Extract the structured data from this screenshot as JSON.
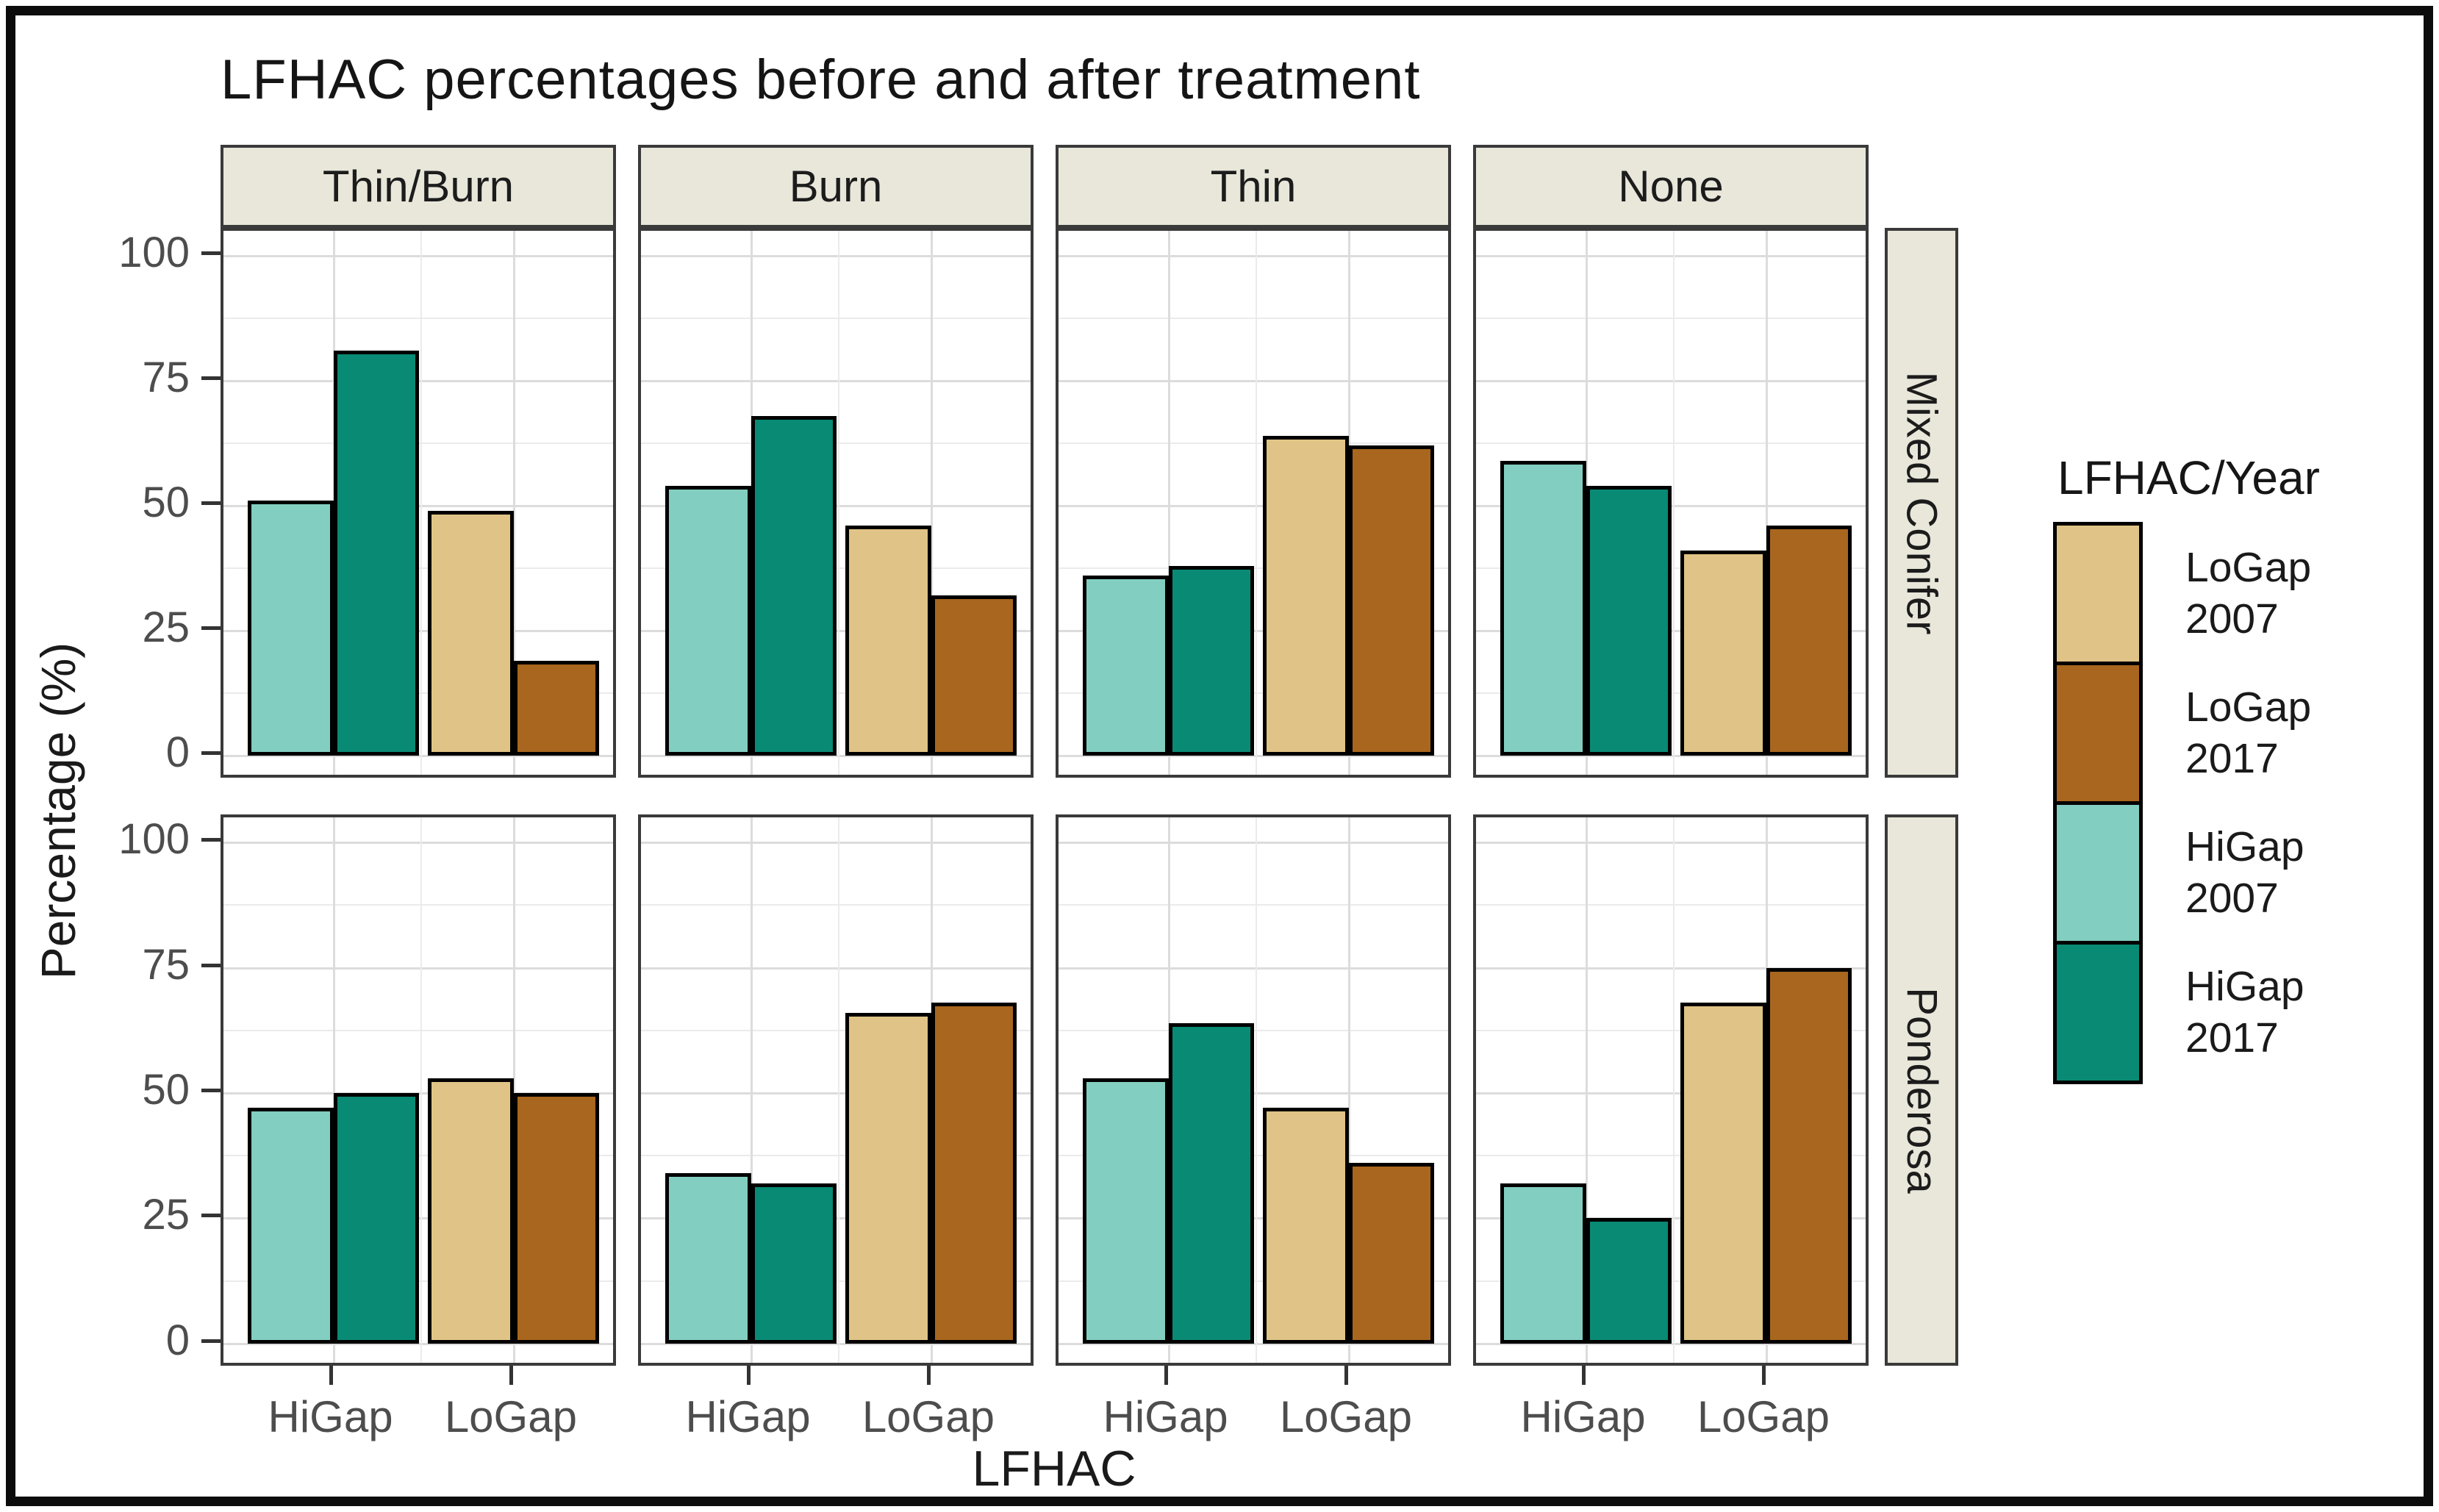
{
  "title": "LFHAC percentages before and after treatment",
  "axes": {
    "y_title": "Percentage (%)",
    "x_title": "LFHAC",
    "y_tick_labels": [
      "100",
      "75",
      "50",
      "25",
      "0"
    ],
    "x_tick_labels": [
      "HiGap",
      "LoGap"
    ]
  },
  "facets": {
    "col_labels": [
      "Thin/Burn",
      "Burn",
      "Thin",
      "None"
    ],
    "row_labels": [
      "Mixed Conifer",
      "Ponderosa"
    ]
  },
  "legend": {
    "title": "LFHAC/Year",
    "entries": [
      {
        "label": "LoGap 2007",
        "label_lines": [
          "LoGap",
          "2007"
        ],
        "color": "#e0c386"
      },
      {
        "label": "LoGap 2017",
        "label_lines": [
          "LoGap",
          "2017"
        ],
        "color": "#a8661e"
      },
      {
        "label": "HiGap 2007",
        "label_lines": [
          "HiGap",
          "2007"
        ],
        "color": "#82cec0"
      },
      {
        "label": "HiGap 2017",
        "label_lines": [
          "HiGap",
          "2017"
        ],
        "color": "#098a74"
      }
    ]
  },
  "colors": {
    "higap_2007": "#82cec0",
    "higap_2017": "#098a74",
    "logap_2007": "#e0c386",
    "logap_2017": "#a8661e",
    "strip_background": "#e8e7da",
    "panel_border": "#3a3a3a",
    "bar_border": "#000000",
    "grid_major": "#dcdcdc",
    "grid_minor": "#ebebeb",
    "axis_text": "#4d4d4d"
  },
  "chart_data": {
    "type": "bar",
    "title": "LFHAC percentages before and after treatment",
    "xlabel": "LFHAC",
    "ylabel": "Percentage (%)",
    "ylim": [
      0,
      100
    ],
    "y_major_ticks": [
      0,
      25,
      50,
      75,
      100
    ],
    "y_minor_gridlines": [
      12.5,
      37.5,
      62.5,
      87.5
    ],
    "x_categories": [
      "HiGap",
      "LoGap"
    ],
    "facet_cols": [
      "Thin/Burn",
      "Burn",
      "Thin",
      "None"
    ],
    "facet_rows": [
      "Mixed Conifer",
      "Ponderosa"
    ],
    "legend_position": "right",
    "grid": true,
    "series": [
      {
        "name": "HiGap 2007",
        "category": "HiGap",
        "year": "2007",
        "color": "#82cec0"
      },
      {
        "name": "HiGap 2017",
        "category": "HiGap",
        "year": "2017",
        "color": "#098a74"
      },
      {
        "name": "LoGap 2007",
        "category": "LoGap",
        "year": "2007",
        "color": "#e0c386"
      },
      {
        "name": "LoGap 2017",
        "category": "LoGap",
        "year": "2017",
        "color": "#a8661e"
      }
    ],
    "panels": [
      {
        "facet_row": "Mixed Conifer",
        "facet_col": "Thin/Burn",
        "values": {
          "HiGap 2007": 51,
          "HiGap 2017": 81,
          "LoGap 2007": 49,
          "LoGap 2017": 19
        }
      },
      {
        "facet_row": "Mixed Conifer",
        "facet_col": "Burn",
        "values": {
          "HiGap 2007": 54,
          "HiGap 2017": 68,
          "LoGap 2007": 46,
          "LoGap 2017": 32
        }
      },
      {
        "facet_row": "Mixed Conifer",
        "facet_col": "Thin",
        "values": {
          "HiGap 2007": 36,
          "HiGap 2017": 38,
          "LoGap 2007": 64,
          "LoGap 2017": 62
        }
      },
      {
        "facet_row": "Mixed Conifer",
        "facet_col": "None",
        "values": {
          "HiGap 2007": 59,
          "HiGap 2017": 54,
          "LoGap 2007": 41,
          "LoGap 2017": 46
        }
      },
      {
        "facet_row": "Ponderosa",
        "facet_col": "Thin/Burn",
        "values": {
          "HiGap 2007": 47,
          "HiGap 2017": 50,
          "LoGap 2007": 53,
          "LoGap 2017": 50
        }
      },
      {
        "facet_row": "Ponderosa",
        "facet_col": "Burn",
        "values": {
          "HiGap 2007": 34,
          "HiGap 2017": 32,
          "LoGap 2007": 66,
          "LoGap 2017": 68
        }
      },
      {
        "facet_row": "Ponderosa",
        "facet_col": "Thin",
        "values": {
          "HiGap 2007": 53,
          "HiGap 2017": 64,
          "LoGap 2007": 47,
          "LoGap 2017": 36
        }
      },
      {
        "facet_row": "Ponderosa",
        "facet_col": "None",
        "values": {
          "HiGap 2007": 32,
          "HiGap 2017": 25,
          "LoGap 2007": 68,
          "LoGap 2017": 75
        }
      }
    ]
  }
}
